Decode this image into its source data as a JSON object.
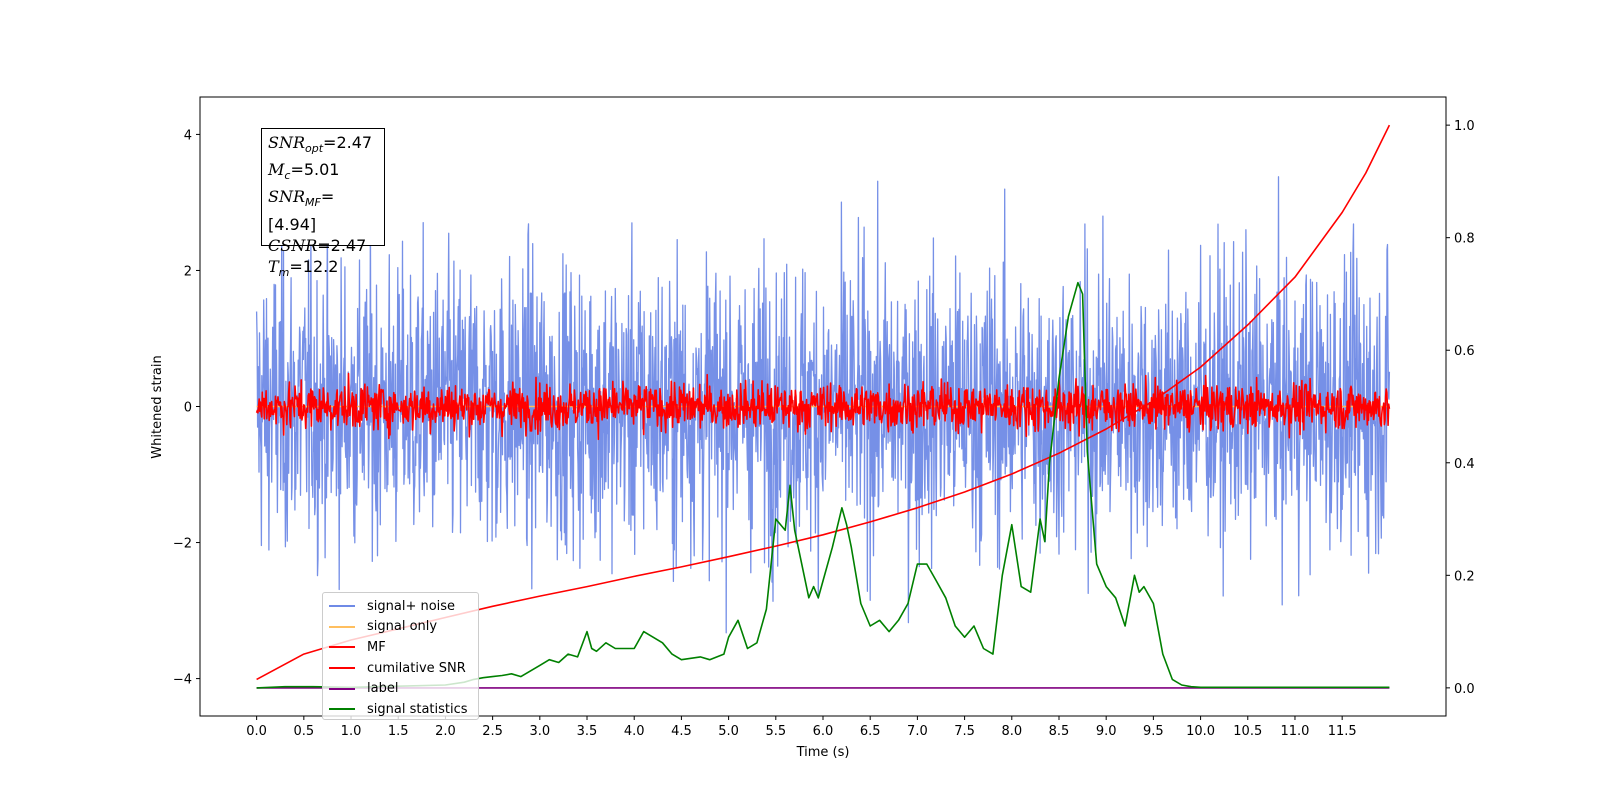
{
  "chart_data": {
    "type": "line",
    "title": "",
    "xlabel": "Time (s)",
    "ylabel": "Whitened strain",
    "xlim": [
      -0.6,
      12.6
    ],
    "ylim": [
      -4.55,
      4.55
    ],
    "y2lim": [
      -0.05,
      1.05
    ],
    "x_ticks": [
      0.0,
      0.5,
      1.0,
      1.5,
      2.0,
      2.5,
      3.0,
      3.5,
      4.0,
      4.5,
      5.0,
      5.5,
      6.0,
      6.5,
      7.0,
      7.5,
      8.0,
      8.5,
      9.0,
      9.5,
      10.0,
      10.5,
      11.0,
      11.5
    ],
    "x_tick_labels": [
      "0.0",
      "0.5",
      "1.0",
      "1.5",
      "2.0",
      "2.5",
      "3.0",
      "3.5",
      "4.0",
      "4.5",
      "5.0",
      "5.5",
      "6.0",
      "6.5",
      "7.0",
      "7.5",
      "8.0",
      "8.5",
      "9.0",
      "9.5",
      "10.0",
      "10.5",
      "11.0",
      "11.5"
    ],
    "y_ticks": [
      -4,
      -2,
      0,
      2,
      4
    ],
    "y_tick_labels": [
      "−4",
      "−2",
      "0",
      "2",
      "4"
    ],
    "y2_ticks": [
      0.0,
      0.2,
      0.4,
      0.6,
      0.8,
      1.0
    ],
    "y2_tick_labels": [
      "0.0",
      "0.2",
      "0.4",
      "0.6",
      "0.8",
      "1.0"
    ],
    "grid": false,
    "legend_position": "lower-left",
    "series": [
      {
        "name": "signal+ noise",
        "color": "#6f8ae6",
        "axis": "left",
        "kind": "noise",
        "x_range": [
          0,
          12
        ],
        "amplitude_std": 1.05,
        "amplitude_peak": 4.1
      },
      {
        "name": "signal only",
        "color": "#ffbf5f",
        "axis": "left",
        "x_range": [
          0,
          12
        ],
        "values_note_free": true,
        "x": [
          0,
          12
        ],
        "y": [
          0,
          0
        ]
      },
      {
        "name": "MF",
        "color": "#ff0000",
        "axis": "left",
        "kind": "noise",
        "x_range": [
          0,
          12
        ],
        "amplitude_std": 0.17,
        "amplitude_peak": 1.0
      },
      {
        "name": "cumilative SNR",
        "color": "#ff0000",
        "axis": "right",
        "x": [
          0,
          0.5,
          1.0,
          1.5,
          2.0,
          2.5,
          3.0,
          3.5,
          4.0,
          4.5,
          5.0,
          5.5,
          6.0,
          6.5,
          7.0,
          7.5,
          8.0,
          8.5,
          9.0,
          9.5,
          10.0,
          10.5,
          11.0,
          11.5,
          11.75,
          12.0
        ],
        "y": [
          0.015,
          0.06,
          0.085,
          0.105,
          0.125,
          0.145,
          0.163,
          0.18,
          0.198,
          0.215,
          0.233,
          0.252,
          0.272,
          0.295,
          0.32,
          0.348,
          0.38,
          0.417,
          0.46,
          0.51,
          0.57,
          0.645,
          0.73,
          0.845,
          0.915,
          1.0
        ]
      },
      {
        "name": "label",
        "color": "#800080",
        "axis": "right",
        "x": [
          0,
          12
        ],
        "y": [
          0,
          0
        ]
      },
      {
        "name": "signal statistics",
        "color": "#008000",
        "axis": "right",
        "x": [
          0,
          0.3,
          0.6,
          1.0,
          1.5,
          2.0,
          2.2,
          2.3,
          2.4,
          2.5,
          2.6,
          2.7,
          2.8,
          3.0,
          3.1,
          3.2,
          3.3,
          3.4,
          3.5,
          3.55,
          3.6,
          3.7,
          3.8,
          4.0,
          4.1,
          4.2,
          4.3,
          4.4,
          4.5,
          4.7,
          4.8,
          4.95,
          5.0,
          5.1,
          5.2,
          5.3,
          5.4,
          5.5,
          5.6,
          5.65,
          5.7,
          5.75,
          5.8,
          5.85,
          5.9,
          5.95,
          6.0,
          6.1,
          6.2,
          6.25,
          6.3,
          6.4,
          6.5,
          6.6,
          6.7,
          6.8,
          6.9,
          7.0,
          7.1,
          7.2,
          7.3,
          7.4,
          7.5,
          7.6,
          7.7,
          7.8,
          7.9,
          8.0,
          8.1,
          8.2,
          8.3,
          8.35,
          8.4,
          8.5,
          8.6,
          8.7,
          8.75,
          8.8,
          8.9,
          9.0,
          9.1,
          9.2,
          9.3,
          9.35,
          9.4,
          9.5,
          9.6,
          9.7,
          9.8,
          9.9,
          10.0,
          10.5,
          11.0,
          12.0
        ],
        "y": [
          0.0,
          0.002,
          0.002,
          0.001,
          0.003,
          0.005,
          0.01,
          0.015,
          0.018,
          0.02,
          0.022,
          0.025,
          0.02,
          0.04,
          0.05,
          0.045,
          0.06,
          0.055,
          0.1,
          0.07,
          0.065,
          0.08,
          0.07,
          0.07,
          0.1,
          0.09,
          0.08,
          0.06,
          0.05,
          0.055,
          0.05,
          0.06,
          0.09,
          0.12,
          0.07,
          0.08,
          0.14,
          0.3,
          0.28,
          0.36,
          0.28,
          0.24,
          0.2,
          0.16,
          0.18,
          0.16,
          0.19,
          0.25,
          0.32,
          0.29,
          0.25,
          0.15,
          0.11,
          0.12,
          0.1,
          0.12,
          0.15,
          0.22,
          0.22,
          0.19,
          0.16,
          0.11,
          0.09,
          0.11,
          0.07,
          0.06,
          0.2,
          0.29,
          0.18,
          0.17,
          0.3,
          0.26,
          0.4,
          0.55,
          0.66,
          0.72,
          0.7,
          0.42,
          0.22,
          0.18,
          0.16,
          0.11,
          0.2,
          0.17,
          0.18,
          0.15,
          0.06,
          0.015,
          0.005,
          0.002,
          0.001,
          0.001,
          0.001,
          0.001
        ]
      }
    ]
  },
  "stats_box": {
    "snr_opt": "=2.47",
    "mc": "=5.01",
    "snr_mf": "=[4.94]",
    "csnr": "=2.47",
    "tm": "=12.2"
  }
}
